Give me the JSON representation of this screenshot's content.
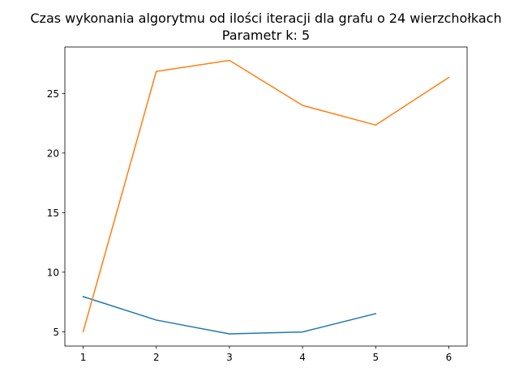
{
  "chart_data": {
    "type": "line",
    "title": "Czas wykonania algorytmu od ilości iteracji dla grafu o 24 wierzchołkach",
    "subtitle": "Parametr k: 5",
    "xlabel": "",
    "ylabel": "",
    "xlim": [
      0.75,
      6.25
    ],
    "ylim": [
      3.8,
      28.9
    ],
    "xticks": [
      1,
      2,
      3,
      4,
      5,
      6
    ],
    "yticks": [
      5,
      10,
      15,
      20,
      25
    ],
    "grid": false,
    "legend": "none",
    "series": [
      {
        "color": "#1f77b4",
        "x": [
          1,
          2,
          3,
          4,
          5
        ],
        "values": [
          7.95,
          5.98,
          4.82,
          4.98,
          6.52
        ]
      },
      {
        "color": "#ff7f0e",
        "x": [
          1,
          2,
          3,
          4,
          5,
          6
        ],
        "values": [
          5.0,
          26.85,
          27.78,
          24.0,
          22.35,
          26.35
        ]
      }
    ]
  }
}
